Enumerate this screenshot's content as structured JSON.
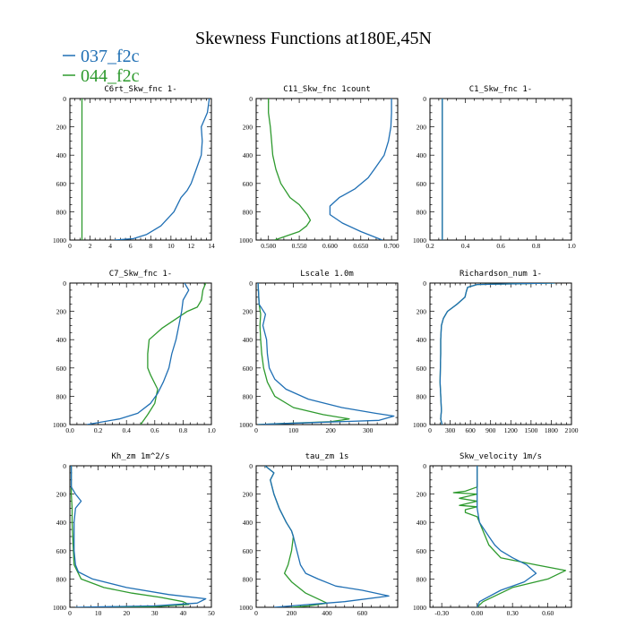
{
  "figure": {
    "title": "Skewness Functions at180E,45N",
    "legend": [
      {
        "label": "037_f2c",
        "color": "#1f6fb4"
      },
      {
        "label": "044_f2c",
        "color": "#2e9a2e"
      }
    ]
  },
  "chart_data": [
    {
      "type": "line",
      "title": "C6rt_Skw_fnc 1-",
      "xlim": [
        0,
        14
      ],
      "ylim": [
        1000,
        0
      ],
      "xticks": [
        0,
        2,
        4,
        6,
        8,
        10,
        12,
        14
      ],
      "xticklabels": [
        "0",
        "2",
        "4",
        "6",
        "8",
        "10",
        "12",
        "14"
      ],
      "yticks": [
        0,
        200,
        400,
        600,
        800,
        1000
      ],
      "yticklabels": [
        "0",
        "200",
        "400",
        "600",
        "800",
        "1000"
      ],
      "series": [
        {
          "name": "037_f2c",
          "color": "#1f6fb4",
          "x": [
            13.8,
            13.7,
            13.6,
            13.0,
            13.1,
            13.0,
            12.5,
            12.0,
            11.6,
            11.0,
            10.3,
            9.0,
            7.6,
            6.3,
            4.4
          ],
          "y": [
            0,
            50,
            100,
            200,
            300,
            400,
            500,
            600,
            650,
            700,
            800,
            900,
            960,
            990,
            1000
          ]
        },
        {
          "name": "044_f2c",
          "color": "#2e9a2e",
          "x": [
            1.2,
            1.2,
            1.2,
            1.2
          ],
          "y": [
            0,
            300,
            700,
            1000
          ]
        }
      ]
    },
    {
      "type": "line",
      "title": "C11_Skw_fnc 1count",
      "xlim": [
        0.48,
        0.71
      ],
      "ylim": [
        1000,
        0
      ],
      "xticks": [
        0.5,
        0.55,
        0.6,
        0.65,
        0.7
      ],
      "xticklabels": [
        "0.500",
        "0.550",
        "0.600",
        "0.650",
        "0.700"
      ],
      "yticks": [
        0,
        200,
        400,
        600,
        800,
        1000
      ],
      "yticklabels": [
        "0",
        "200",
        "400",
        "600",
        "800",
        "1000"
      ],
      "series": [
        {
          "name": "037_f2c",
          "color": "#1f6fb4",
          "x": [
            0.7,
            0.7,
            0.699,
            0.695,
            0.688,
            0.68,
            0.672,
            0.662,
            0.64,
            0.615,
            0.6,
            0.6,
            0.62,
            0.65,
            0.685
          ],
          "y": [
            0,
            100,
            200,
            300,
            400,
            450,
            500,
            560,
            640,
            700,
            760,
            820,
            880,
            940,
            1000
          ]
        },
        {
          "name": "044_f2c",
          "color": "#2e9a2e",
          "x": [
            0.5,
            0.5,
            0.503,
            0.505,
            0.507,
            0.512,
            0.52,
            0.535,
            0.55,
            0.563,
            0.568,
            0.562,
            0.55,
            0.53,
            0.51
          ],
          "y": [
            0,
            100,
            200,
            300,
            400,
            500,
            600,
            700,
            750,
            820,
            860,
            900,
            940,
            970,
            1000
          ]
        }
      ]
    },
    {
      "type": "line",
      "title": "C1_Skw_fnc 1-",
      "xlim": [
        0.2,
        1.0
      ],
      "ylim": [
        1000,
        0
      ],
      "xticks": [
        0.2,
        0.4,
        0.6,
        0.8,
        1.0
      ],
      "xticklabels": [
        "0.2",
        "0.4",
        "0.6",
        "0.8",
        "1.0"
      ],
      "yticks": [
        0,
        200,
        400,
        600,
        800,
        1000
      ],
      "yticklabels": [
        "0",
        "200",
        "400",
        "600",
        "800",
        "1000"
      ],
      "series": [
        {
          "name": "037_f2c",
          "color": "#1f6fb4",
          "x": [
            0.27,
            0.27
          ],
          "y": [
            0,
            1000
          ]
        },
        {
          "name": "044_f2c",
          "color": "#2e9a2e",
          "x": [
            0.27,
            0.27
          ],
          "y": [
            0,
            1000
          ]
        }
      ]
    },
    {
      "type": "line",
      "title": "C7_Skw_fnc 1-",
      "xlim": [
        0.0,
        1.0
      ],
      "ylim": [
        1000,
        0
      ],
      "xticks": [
        0.0,
        0.2,
        0.4,
        0.6,
        0.8,
        1.0
      ],
      "xticklabels": [
        "0.0",
        "0.2",
        "0.4",
        "0.6",
        "0.8",
        "1.0"
      ],
      "yticks": [
        0,
        200,
        400,
        600,
        800,
        1000
      ],
      "yticklabels": [
        "0",
        "200",
        "400",
        "600",
        "800",
        "1000"
      ],
      "series": [
        {
          "name": "037_f2c",
          "color": "#1f6fb4",
          "x": [
            0.81,
            0.84,
            0.8,
            0.79,
            0.77,
            0.75,
            0.72,
            0.7,
            0.66,
            0.62,
            0.57,
            0.48,
            0.35,
            0.12
          ],
          "y": [
            0,
            50,
            120,
            200,
            300,
            400,
            500,
            600,
            700,
            780,
            850,
            920,
            960,
            1000
          ]
        },
        {
          "name": "044_f2c",
          "color": "#2e9a2e",
          "x": [
            0.96,
            0.94,
            0.93,
            0.9,
            0.83,
            0.65,
            0.56,
            0.55,
            0.55,
            0.57,
            0.62,
            0.6,
            0.55,
            0.5
          ],
          "y": [
            0,
            50,
            120,
            170,
            200,
            320,
            400,
            500,
            600,
            650,
            750,
            850,
            930,
            1000
          ]
        }
      ]
    },
    {
      "type": "line",
      "title": "Lscale 1.0m",
      "xlim": [
        0,
        380
      ],
      "ylim": [
        1000,
        0
      ],
      "xticks": [
        0,
        100,
        200,
        300
      ],
      "xticklabels": [
        "0",
        "100",
        "200",
        "300"
      ],
      "yticks": [
        0,
        200,
        400,
        600,
        800,
        1000
      ],
      "yticklabels": [
        "0",
        "200",
        "400",
        "600",
        "800",
        "1000"
      ],
      "series": [
        {
          "name": "037_f2c",
          "color": "#1f6fb4",
          "x": [
            5,
            8,
            25,
            18,
            28,
            30,
            35,
            50,
            80,
            140,
            230,
            320,
            370,
            330,
            50,
            5
          ],
          "y": [
            0,
            150,
            220,
            300,
            400,
            500,
            600,
            680,
            750,
            820,
            880,
            920,
            940,
            970,
            995,
            1000
          ]
        },
        {
          "name": "044_f2c",
          "color": "#2e9a2e",
          "x": [
            5,
            8,
            12,
            10,
            12,
            15,
            20,
            30,
            50,
            100,
            180,
            250,
            200,
            50,
            5
          ],
          "y": [
            0,
            150,
            220,
            300,
            400,
            500,
            600,
            700,
            800,
            880,
            930,
            960,
            980,
            995,
            1000
          ]
        }
      ]
    },
    {
      "type": "line",
      "title": "Richardson_num 1-",
      "xlim": [
        0,
        2100
      ],
      "ylim": [
        1000,
        0
      ],
      "xticks": [
        0,
        300,
        600,
        900,
        1200,
        1500,
        1800,
        2100
      ],
      "xticklabels": [
        "0",
        "300",
        "600",
        "900",
        "1200",
        "1500",
        "1800",
        "2100"
      ],
      "yticks": [
        0,
        200,
        400,
        600,
        800,
        1000
      ],
      "yticklabels": [
        "0",
        "200",
        "400",
        "600",
        "800",
        "1000"
      ],
      "series": [
        {
          "name": "037_f2c",
          "color": "#1f6fb4",
          "x": [
            1850,
            700,
            560,
            540,
            520,
            400,
            260,
            200,
            170,
            160,
            160,
            150,
            170,
            160,
            180
          ],
          "y": [
            0,
            10,
            30,
            60,
            100,
            150,
            200,
            250,
            300,
            400,
            500,
            700,
            900,
            960,
            1000
          ]
        },
        {
          "name": "044_f2c",
          "color": "#2e9a2e",
          "x": [
            1850,
            700,
            560,
            540,
            520,
            400,
            260,
            200,
            170,
            160,
            160,
            150,
            170,
            160,
            180
          ],
          "y": [
            0,
            10,
            30,
            60,
            100,
            150,
            200,
            250,
            300,
            400,
            500,
            700,
            900,
            960,
            1000
          ]
        }
      ]
    },
    {
      "type": "line",
      "title": "Kh_zm 1m^2/s",
      "xlim": [
        0,
        50
      ],
      "ylim": [
        1000,
        0
      ],
      "xticks": [
        0,
        10,
        20,
        30,
        40,
        50
      ],
      "xticklabels": [
        "0",
        "10",
        "20",
        "30",
        "40",
        "50"
      ],
      "yticks": [
        0,
        200,
        400,
        600,
        800,
        1000
      ],
      "yticklabels": [
        "0",
        "200",
        "400",
        "600",
        "800",
        "1000"
      ],
      "series": [
        {
          "name": "037_f2c",
          "color": "#1f6fb4",
          "x": [
            0.5,
            0.5,
            2,
            4,
            2,
            1.5,
            1.5,
            2,
            3,
            8,
            20,
            35,
            48,
            45,
            30,
            2
          ],
          "y": [
            0,
            150,
            200,
            250,
            300,
            400,
            600,
            700,
            750,
            800,
            860,
            910,
            940,
            970,
            990,
            1000
          ]
        },
        {
          "name": "044_f2c",
          "color": "#2e9a2e",
          "x": [
            0.5,
            0.5,
            0.8,
            0.8,
            1,
            1.5,
            4,
            12,
            22,
            32,
            40,
            42,
            30,
            5
          ],
          "y": [
            0,
            200,
            300,
            400,
            500,
            700,
            800,
            860,
            900,
            930,
            960,
            980,
            995,
            1000
          ]
        }
      ]
    },
    {
      "type": "line",
      "title": "tau_zm 1s",
      "xlim": [
        0,
        800
      ],
      "ylim": [
        1000,
        0
      ],
      "xticks": [
        0,
        200,
        400,
        600
      ],
      "xticklabels": [
        "0",
        "200",
        "400",
        "600"
      ],
      "yticks": [
        0,
        200,
        400,
        600,
        800,
        1000
      ],
      "yticklabels": [
        "0",
        "200",
        "400",
        "600",
        "800",
        "1000"
      ],
      "series": [
        {
          "name": "037_f2c",
          "color": "#1f6fb4",
          "x": [
            50,
            100,
            80,
            100,
            130,
            170,
            200,
            210,
            230,
            250,
            280,
            350,
            450,
            600,
            750,
            500,
            100
          ],
          "y": [
            0,
            50,
            100,
            200,
            300,
            400,
            460,
            500,
            600,
            700,
            760,
            800,
            850,
            880,
            920,
            960,
            1000
          ]
        },
        {
          "name": "044_f2c",
          "color": "#2e9a2e",
          "x": [
            50,
            100,
            80,
            100,
            130,
            170,
            200,
            210,
            200,
            180,
            160,
            200,
            280,
            400,
            300,
            200
          ],
          "y": [
            0,
            50,
            100,
            200,
            300,
            400,
            460,
            500,
            600,
            700,
            760,
            820,
            900,
            970,
            990,
            1000
          ]
        }
      ]
    },
    {
      "type": "line",
      "title": "Skw_velocity 1m/s",
      "xlim": [
        -0.4,
        0.8
      ],
      "ylim": [
        1000,
        0
      ],
      "xticks": [
        -0.3,
        0.0,
        0.3,
        0.6
      ],
      "xticklabels": [
        "-0.30",
        "0.00",
        "0.30",
        "0.60"
      ],
      "yticks": [
        0,
        200,
        400,
        600,
        800,
        1000
      ],
      "yticklabels": [
        "0",
        "200",
        "400",
        "600",
        "800",
        "1000"
      ],
      "series": [
        {
          "name": "037_f2c",
          "color": "#1f6fb4",
          "x": [
            0.0,
            0.0,
            0.0,
            0.02,
            0.1,
            0.15,
            0.2,
            0.3,
            0.42,
            0.5,
            0.4,
            0.2,
            0.02,
            0.0
          ],
          "y": [
            0,
            200,
            300,
            400,
            500,
            560,
            600,
            650,
            700,
            760,
            820,
            880,
            960,
            1000
          ]
        },
        {
          "name": "044_f2c",
          "color": "#2e9a2e",
          "x": [
            0.0,
            0.0,
            -0.1,
            -0.2,
            0.0,
            -0.15,
            0.0,
            -0.15,
            0.0,
            -0.1,
            -0.1,
            0.0,
            0.1,
            0.2,
            0.5,
            0.75,
            0.6,
            0.3,
            0.05,
            0.0
          ],
          "y": [
            0,
            150,
            180,
            190,
            200,
            230,
            250,
            280,
            290,
            310,
            330,
            360,
            560,
            650,
            700,
            740,
            800,
            860,
            960,
            1000
          ]
        }
      ]
    }
  ]
}
